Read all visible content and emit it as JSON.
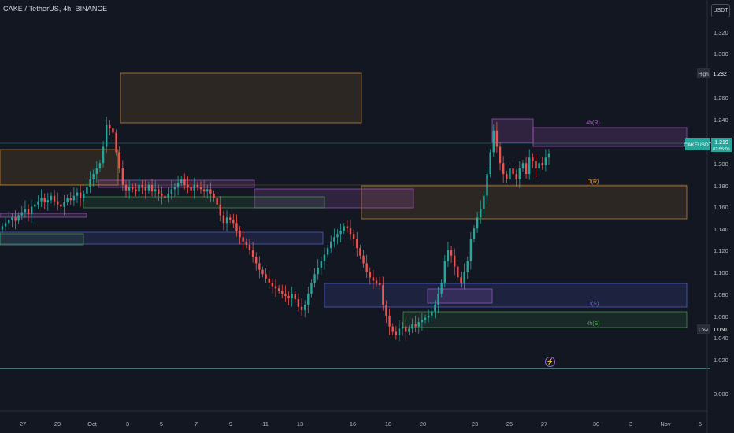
{
  "header": {
    "title": "CAKE / TetherUS, 4h, BINANCE",
    "currency_label": "USDT"
  },
  "price_scale": {
    "labels": [
      "1.320",
      "1.300",
      "1.260",
      "1.240",
      "1.200",
      "1.180",
      "1.160",
      "1.140",
      "1.120",
      "1.100",
      "1.080",
      "1.060",
      "1.040",
      "1.020"
    ],
    "high": {
      "label": "High",
      "value": "1.282"
    },
    "low": {
      "label": "Low",
      "value": "1.050"
    },
    "current": {
      "label": "CAKEUSDT",
      "value": "1.219",
      "countdown": "02:55:05"
    }
  },
  "oscillator": {
    "label": "0.000"
  },
  "time_axis": {
    "labels": [
      "27",
      "29",
      "Oct",
      "3",
      "5",
      "7",
      "9",
      "11",
      "13",
      "16",
      "18",
      "20",
      "23",
      "25",
      "27",
      "30",
      "3",
      "Nov",
      "5"
    ]
  },
  "zones": [
    {
      "label": "4h(R)"
    },
    {
      "label": "D(R)"
    },
    {
      "label": "D(S)"
    },
    {
      "label": "4h(S)"
    }
  ],
  "colors": {
    "background": "#131722",
    "up": "#26a69a",
    "down": "#ef5350",
    "resistance": "#f0a030",
    "support": "#5b6cf0",
    "zone_purple": "#b05fcf",
    "zone_green": "#4caf50"
  },
  "chart_data": {
    "type": "candlestick",
    "symbol": "CAKE / TetherUS",
    "interval": "4h",
    "exchange": "BINANCE",
    "ylim": [
      1.02,
      1.33
    ],
    "closes": [
      1.152,
      1.155,
      1.158,
      1.16,
      1.157,
      1.162,
      1.165,
      1.168,
      1.163,
      1.17,
      1.172,
      1.175,
      1.178,
      1.174,
      1.176,
      1.18,
      1.175,
      1.172,
      1.17,
      1.174,
      1.178,
      1.176,
      1.18,
      1.183,
      1.178,
      1.182,
      1.188,
      1.195,
      1.2,
      1.205,
      1.21,
      1.225,
      1.245,
      1.242,
      1.238,
      1.22,
      1.205,
      1.19,
      1.185,
      1.188,
      1.186,
      1.184,
      1.19,
      1.188,
      1.185,
      1.19,
      1.184,
      1.186,
      1.182,
      1.18,
      1.178,
      1.182,
      1.186,
      1.188,
      1.192,
      1.195,
      1.19,
      1.188,
      1.185,
      1.19,
      1.188,
      1.186,
      1.184,
      1.186,
      1.182,
      1.178,
      1.172,
      1.162,
      1.155,
      1.16,
      1.158,
      1.155,
      1.148,
      1.142,
      1.138,
      1.135,
      1.13,
      1.124,
      1.118,
      1.112,
      1.108,
      1.104,
      1.1,
      1.097,
      1.095,
      1.093,
      1.09,
      1.088,
      1.086,
      1.09,
      1.085,
      1.078,
      1.075,
      1.08,
      1.09,
      1.1,
      1.108,
      1.114,
      1.12,
      1.126,
      1.132,
      1.138,
      1.142,
      1.145,
      1.148,
      1.152,
      1.15,
      1.145,
      1.14,
      1.132,
      1.125,
      1.118,
      1.11,
      1.105,
      1.102,
      1.1,
      1.098,
      1.08,
      1.07,
      1.06,
      1.055,
      1.052,
      1.058,
      1.06,
      1.055,
      1.058,
      1.062,
      1.06,
      1.064,
      1.066,
      1.068,
      1.07,
      1.074,
      1.08,
      1.09,
      1.1,
      1.12,
      1.13,
      1.125,
      1.115,
      1.105,
      1.1,
      1.11,
      1.12,
      1.14,
      1.15,
      1.16,
      1.168,
      1.18,
      1.2,
      1.22,
      1.24,
      1.225,
      1.21,
      1.2,
      1.195,
      1.205,
      1.2,
      1.195,
      1.205,
      1.21,
      1.2,
      1.215,
      1.212,
      1.205,
      1.21,
      1.208,
      1.215,
      1.219
    ]
  }
}
